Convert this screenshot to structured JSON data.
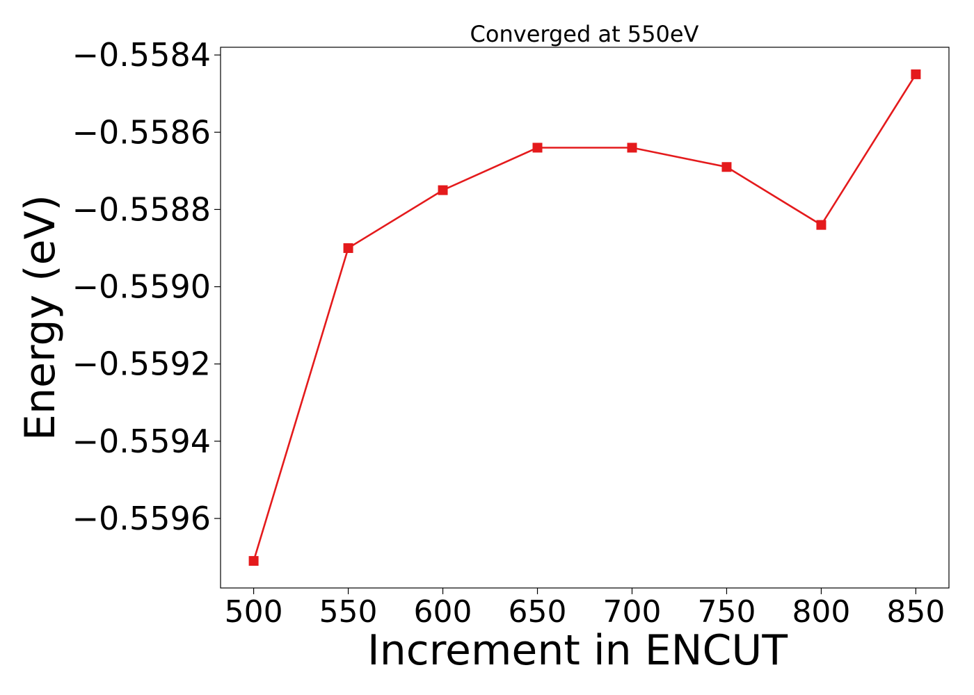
{
  "chart_data": {
    "type": "line",
    "title": "Converged at 550eV",
    "xlabel": "Increment in ENCUT",
    "ylabel": "Energy (eV)",
    "x": [
      500,
      550,
      600,
      650,
      700,
      750,
      800,
      850
    ],
    "series": [
      {
        "values": [
          -0.55971,
          -0.5589,
          -0.55875,
          -0.55864,
          -0.55864,
          -0.55869,
          -0.55884,
          -0.55845
        ],
        "color": "#e41a1c",
        "marker": "square"
      }
    ],
    "xlim": [
      482.5,
      867.5
    ],
    "ylim": [
      -0.55978,
      -0.55838
    ],
    "xticks": [
      500,
      550,
      600,
      650,
      700,
      750,
      800,
      850
    ],
    "xtick_labels": [
      "500",
      "550",
      "600",
      "650",
      "700",
      "750",
      "800",
      "850"
    ],
    "yticks": [
      -0.5584,
      -0.5586,
      -0.5588,
      -0.559,
      -0.5592,
      -0.5594,
      -0.5596
    ],
    "ytick_labels": [
      "−0.5584",
      "−0.5586",
      "−0.5588",
      "−0.5590",
      "−0.5592",
      "−0.5594",
      "−0.5596"
    ],
    "grid": false,
    "legend": false
  }
}
